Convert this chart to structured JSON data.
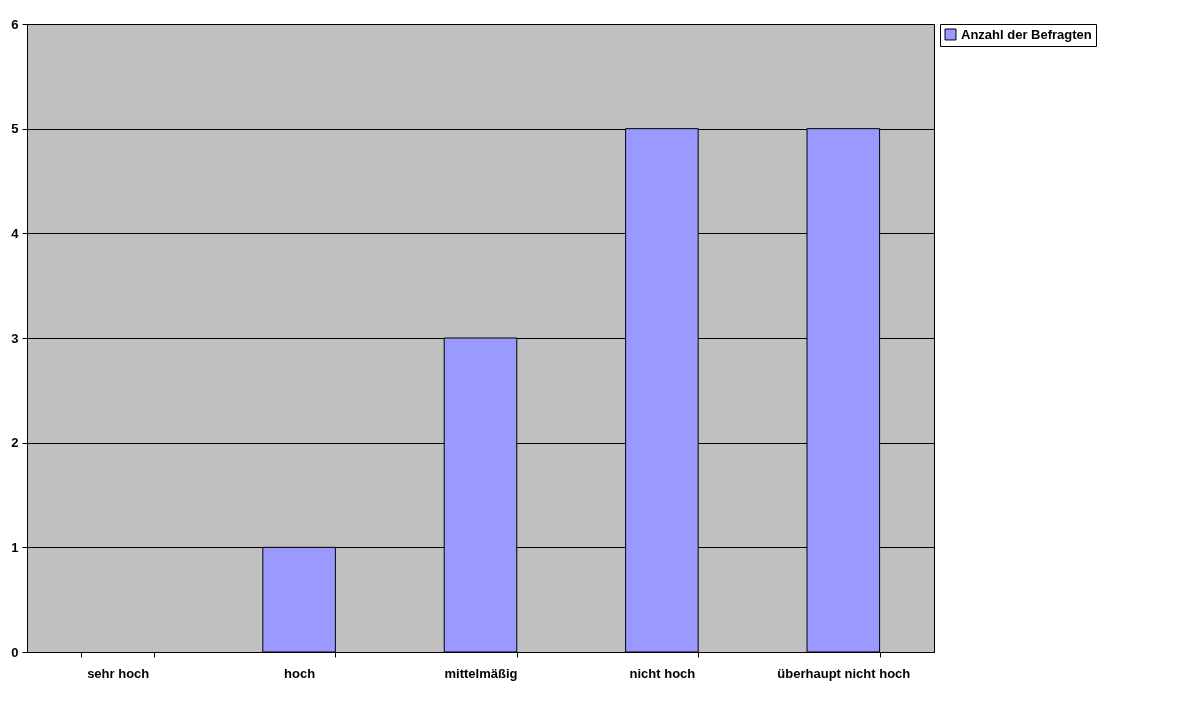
{
  "chart_data": {
    "type": "bar",
    "categories": [
      "sehr hoch",
      "hoch",
      "mittelmäßig",
      "nicht hoch",
      "überhaupt nicht hoch"
    ],
    "series": [
      {
        "name": "Anzahl der Befragten",
        "color": "#9999ff",
        "values": [
          0,
          1,
          3,
          5,
          5
        ]
      }
    ],
    "ylim": [
      0,
      6
    ],
    "yticks": [
      0,
      1,
      2,
      3,
      4,
      5,
      6
    ],
    "grid": "y",
    "legend": "right"
  }
}
